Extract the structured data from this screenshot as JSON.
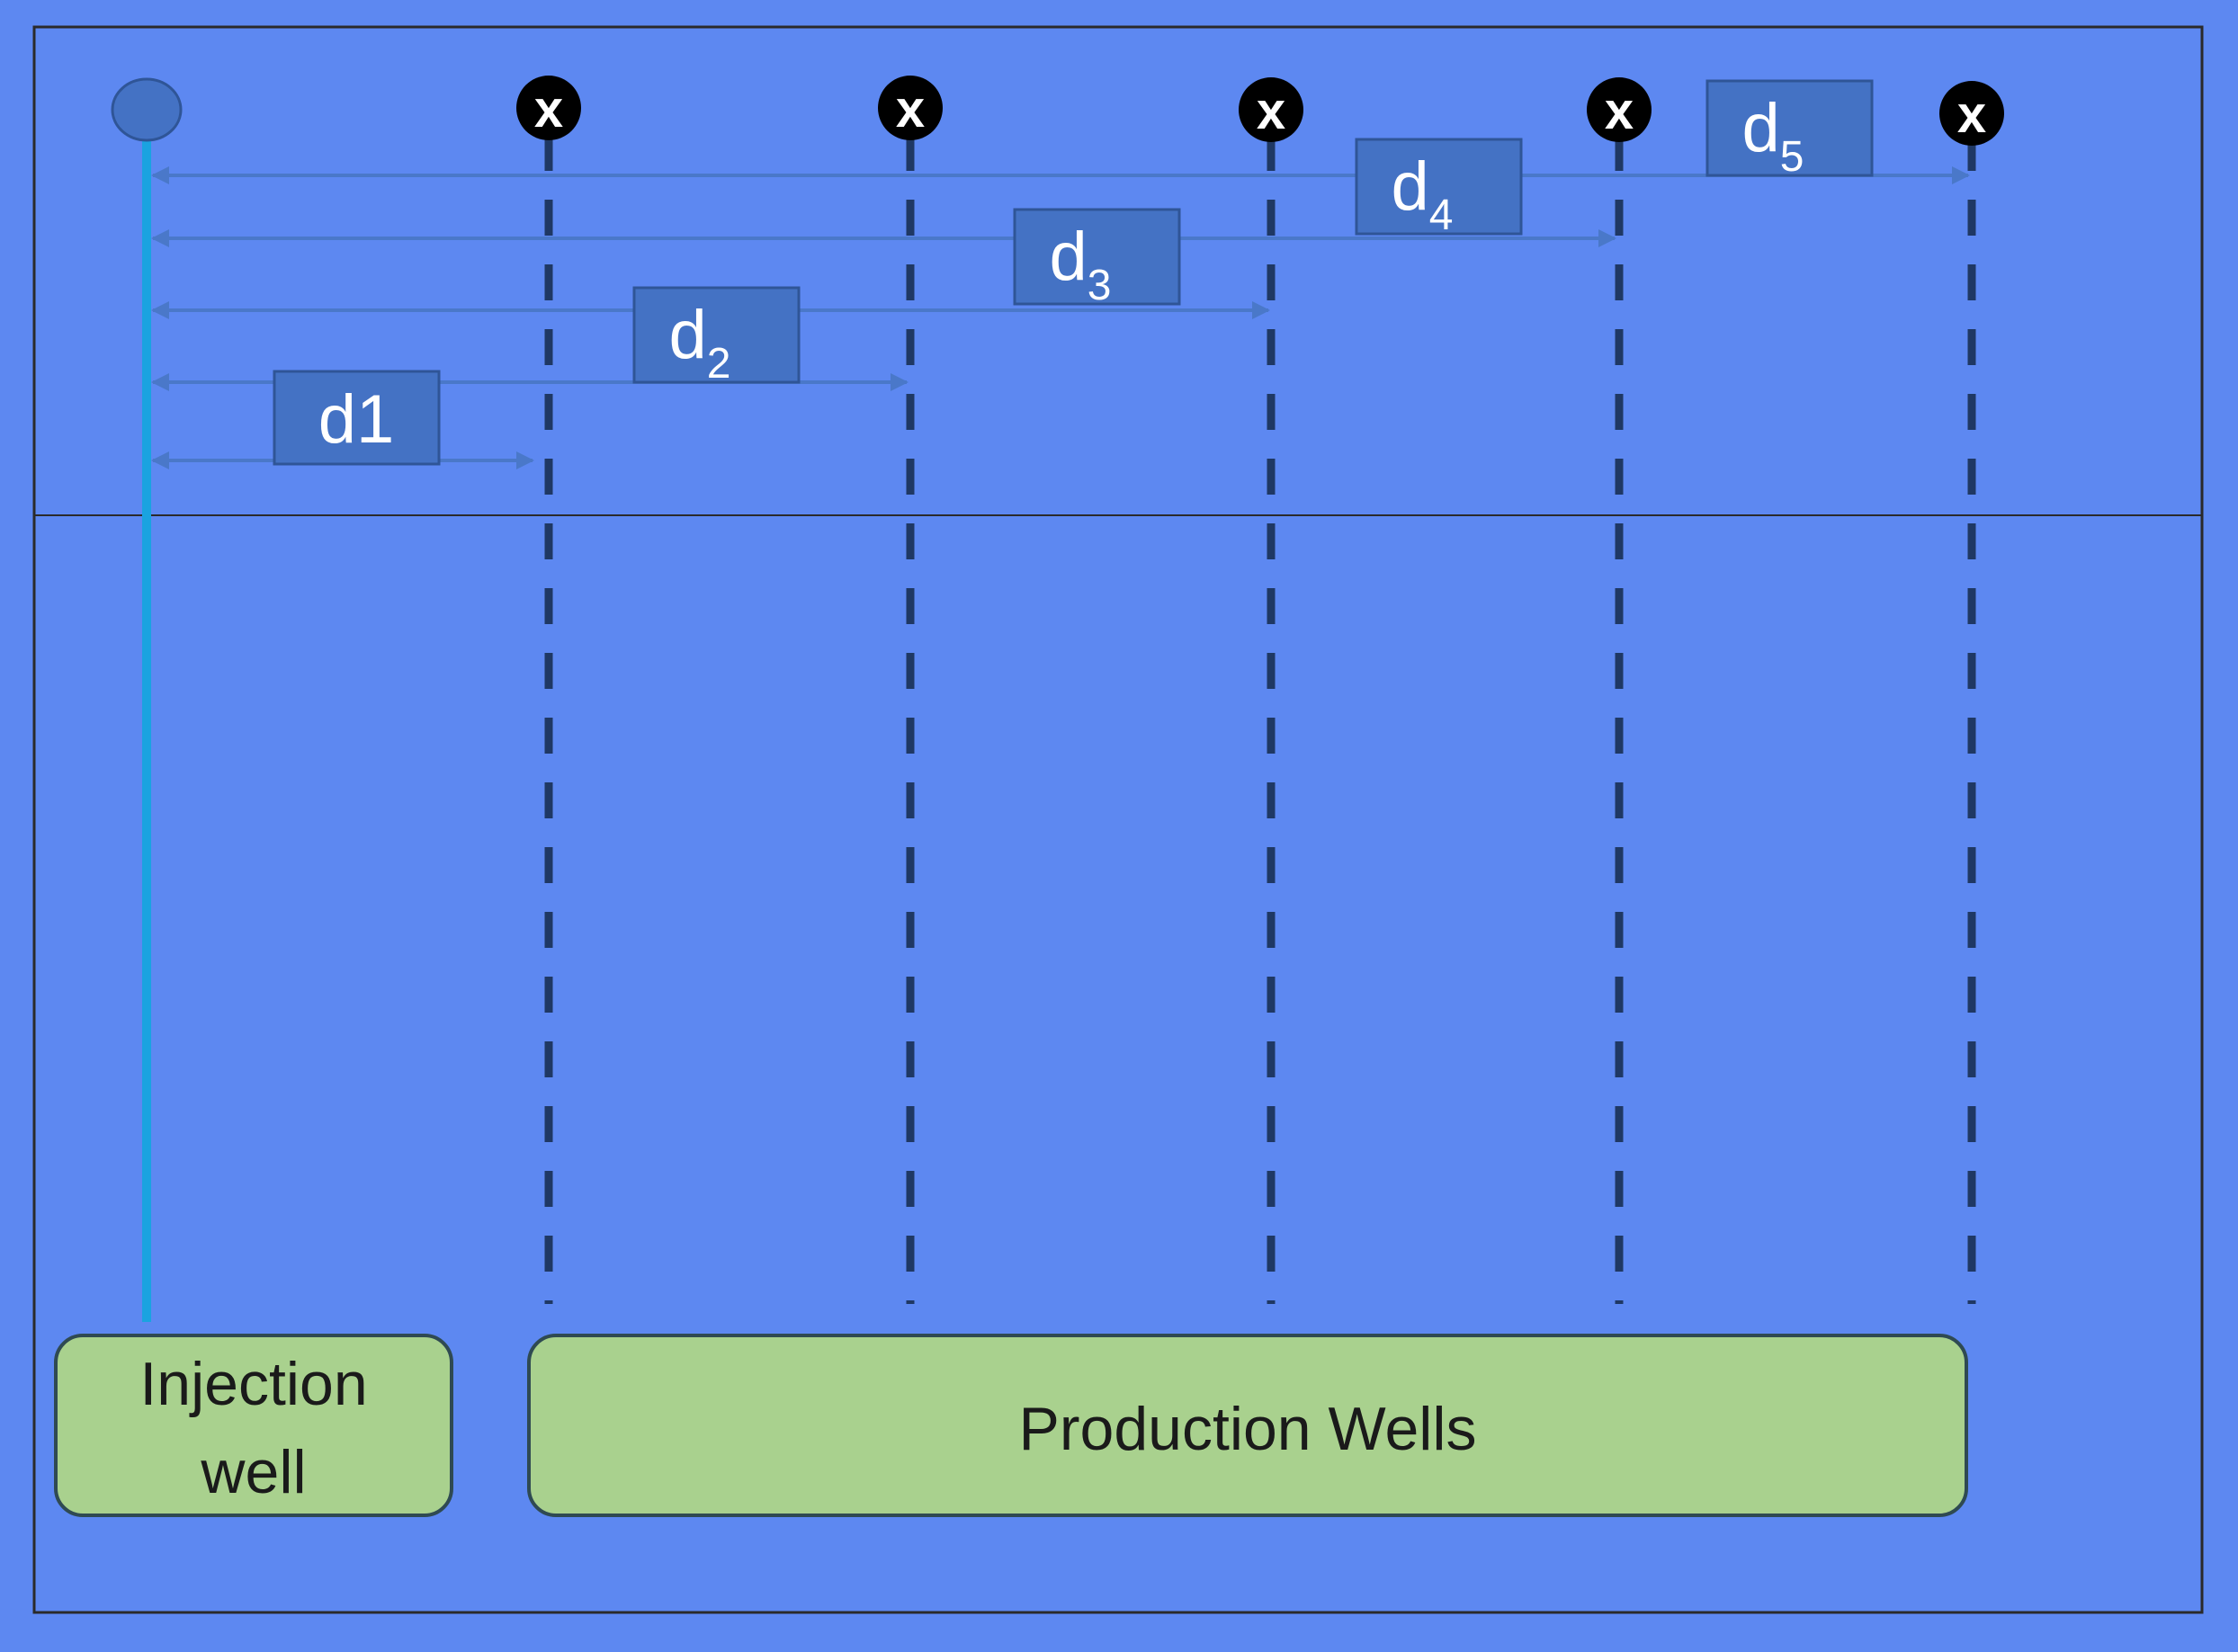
{
  "labels": {
    "injection_line1": "Injection",
    "injection_line2": "well",
    "production": "Production Wells"
  },
  "distances": [
    {
      "base": "d1",
      "sub": ""
    },
    {
      "base": "d",
      "sub": "2"
    },
    {
      "base": "d",
      "sub": "3"
    },
    {
      "base": "d",
      "sub": "4"
    },
    {
      "base": "d",
      "sub": "5"
    }
  ],
  "production_well_marker": "x",
  "colors": {
    "sky": "#e3e3e3",
    "injection_line": "#1aa3e0",
    "injection_marker": "#4472c4",
    "arrow": "#4a78c9",
    "distance_box": "#4472c4",
    "dashed_line": "#1f3864",
    "label_box": "#a9d18e",
    "label_box_border": "#2f4a52",
    "heatmap_low": "#1c3fe0",
    "heatmap_mid_low": "#3fe8e6",
    "heatmap_mid": "#7ff04a",
    "heatmap_mid_high": "#f0f01a",
    "heatmap_high": "#e81a10"
  }
}
